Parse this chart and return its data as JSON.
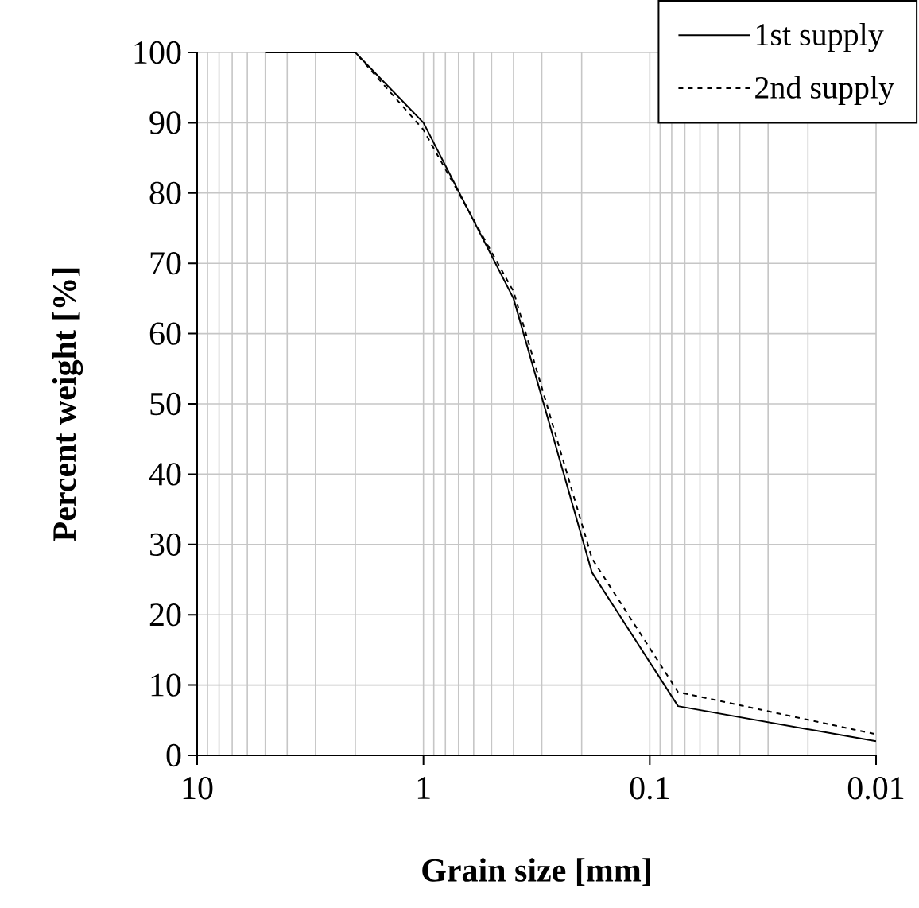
{
  "chart_data": {
    "type": "line",
    "xlabel": "Grain size [mm]",
    "ylabel": "Percent weight [%]",
    "log": "x",
    "xlim": [
      10,
      0.01
    ],
    "xticks": [
      10,
      1,
      0.1,
      0.01
    ],
    "ylim": [
      0,
      100
    ],
    "yticks": [
      0,
      10,
      20,
      30,
      40,
      50,
      60,
      70,
      80,
      90,
      100
    ],
    "grid": true,
    "legend": "top right",
    "series": [
      {
        "name": "1st supply",
        "color": "#000000",
        "line_style": "solid",
        "x": [
          5,
          2,
          1,
          0.4,
          0.18,
          0.075,
          0.01
        ],
        "values": [
          100,
          100,
          90,
          65,
          26,
          7,
          2
        ]
      },
      {
        "name": "2nd supply",
        "color": "#000000",
        "line_style": "dashed",
        "x": [
          5,
          2,
          1,
          0.4,
          0.18,
          0.075,
          0.01
        ],
        "values": [
          100,
          100,
          89,
          66,
          28,
          9,
          3
        ]
      }
    ]
  }
}
